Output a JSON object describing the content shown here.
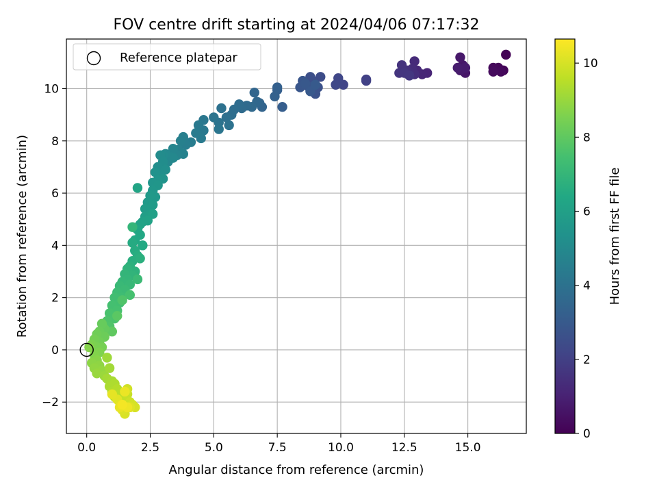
{
  "chart_data": {
    "type": "scatter",
    "title": "FOV centre drift starting at 2024/04/06 07:17:32",
    "xlabel": "Angular distance from reference (arcmin)",
    "ylabel": "Rotation from reference (arcmin)",
    "xlim": [
      -0.8,
      17.3
    ],
    "ylim": [
      -3.2,
      11.9
    ],
    "x_ticks": [
      0,
      2.5,
      5,
      7.5,
      10,
      12.5,
      15
    ],
    "x_tick_labels": [
      "0.0",
      "2.5",
      "5.0",
      "7.5",
      "10.0",
      "12.5",
      "15.0"
    ],
    "y_ticks": [
      -2,
      0,
      2,
      4,
      6,
      8,
      10
    ],
    "y_tick_labels": [
      "−2",
      "0",
      "2",
      "4",
      "6",
      "8",
      "10"
    ],
    "grid": true,
    "colormap": "viridis",
    "colorbar": {
      "label": "Hours from first FF file",
      "range": [
        0,
        10.65
      ],
      "ticks": [
        0,
        2,
        4,
        6,
        8,
        10
      ],
      "tick_labels": [
        "0",
        "2",
        "4",
        "6",
        "8",
        "10"
      ]
    },
    "legend": {
      "placement": "top-left",
      "entries": [
        {
          "label": "Reference platepar",
          "marker": "open-circle"
        }
      ]
    },
    "reference_point": {
      "x": 0.0,
      "y": 0.0
    },
    "points": [
      [
        16.5,
        11.3,
        0.05
      ],
      [
        16.4,
        10.7,
        0.1
      ],
      [
        16.2,
        10.8,
        0.15
      ],
      [
        16.0,
        10.8,
        0.2
      ],
      [
        16.3,
        10.65,
        0.25
      ],
      [
        16.0,
        10.65,
        0.3
      ],
      [
        14.9,
        10.6,
        0.6
      ],
      [
        14.8,
        10.9,
        0.65
      ],
      [
        14.7,
        11.2,
        0.7
      ],
      [
        14.7,
        10.7,
        0.75
      ],
      [
        14.9,
        10.8,
        0.8
      ],
      [
        14.6,
        10.8,
        0.85
      ],
      [
        13.4,
        10.6,
        1.1
      ],
      [
        13.2,
        10.55,
        1.15
      ],
      [
        13.0,
        10.7,
        1.2
      ],
      [
        12.9,
        11.05,
        1.3
      ],
      [
        12.8,
        10.75,
        1.35
      ],
      [
        12.9,
        10.55,
        1.4
      ],
      [
        12.7,
        10.6,
        1.45
      ],
      [
        12.6,
        10.7,
        1.5
      ],
      [
        12.4,
        10.9,
        1.55
      ],
      [
        12.3,
        10.6,
        1.6
      ],
      [
        12.5,
        10.6,
        1.65
      ],
      [
        12.7,
        10.5,
        1.7
      ],
      [
        11.0,
        10.35,
        2.0
      ],
      [
        11.0,
        10.3,
        2.05
      ],
      [
        10.1,
        10.15,
        2.15
      ],
      [
        9.9,
        10.25,
        2.2
      ],
      [
        9.9,
        10.4,
        2.25
      ],
      [
        9.8,
        10.15,
        2.3
      ],
      [
        9.2,
        10.45,
        2.45
      ],
      [
        8.9,
        10.3,
        2.5
      ],
      [
        8.8,
        10.45,
        2.55
      ],
      [
        8.9,
        10.0,
        2.6
      ],
      [
        9.1,
        10.05,
        2.65
      ],
      [
        9.0,
        9.8,
        2.7
      ],
      [
        8.7,
        10.1,
        2.75
      ],
      [
        8.5,
        10.3,
        2.8
      ],
      [
        8.4,
        10.05,
        2.85
      ],
      [
        8.6,
        10.2,
        2.9
      ],
      [
        8.8,
        9.9,
        2.95
      ],
      [
        9.0,
        10.15,
        3.0
      ],
      [
        7.7,
        9.3,
        3.15
      ],
      [
        7.5,
        9.95,
        3.2
      ],
      [
        7.5,
        10.05,
        3.25
      ],
      [
        7.4,
        9.7,
        3.3
      ],
      [
        6.9,
        9.3,
        3.4
      ],
      [
        6.8,
        9.45,
        3.45
      ],
      [
        6.6,
        9.85,
        3.5
      ],
      [
        6.7,
        9.5,
        3.55
      ],
      [
        6.5,
        9.3,
        3.6
      ],
      [
        6.3,
        9.35,
        3.65
      ],
      [
        6.1,
        9.25,
        3.7
      ],
      [
        6.0,
        9.4,
        3.75
      ],
      [
        5.8,
        9.2,
        3.8
      ],
      [
        5.7,
        9.0,
        3.85
      ],
      [
        5.5,
        8.9,
        3.9
      ],
      [
        5.3,
        9.25,
        3.95
      ],
      [
        5.6,
        8.6,
        4.0
      ],
      [
        5.2,
        8.7,
        4.05
      ],
      [
        5.0,
        8.9,
        4.1
      ],
      [
        5.2,
        8.45,
        4.15
      ],
      [
        4.6,
        8.8,
        4.2
      ],
      [
        4.6,
        8.4,
        4.25
      ],
      [
        4.4,
        8.6,
        4.3
      ],
      [
        4.5,
        8.1,
        4.35
      ],
      [
        4.3,
        8.3,
        4.4
      ],
      [
        4.1,
        7.95,
        4.45
      ],
      [
        3.9,
        7.85,
        4.5
      ],
      [
        3.8,
        8.15,
        4.55
      ],
      [
        3.7,
        8.0,
        4.6
      ],
      [
        3.6,
        7.65,
        4.65
      ],
      [
        3.8,
        7.5,
        4.7
      ],
      [
        3.55,
        7.45,
        4.75
      ],
      [
        3.4,
        7.7,
        4.8
      ],
      [
        3.3,
        7.4,
        4.85
      ],
      [
        3.2,
        7.2,
        4.9
      ],
      [
        3.4,
        7.35,
        4.95
      ],
      [
        3.1,
        7.5,
        5.0
      ],
      [
        3.0,
        7.45,
        5.05
      ],
      [
        2.9,
        7.45,
        5.1
      ],
      [
        3.0,
        7.2,
        5.15
      ],
      [
        2.8,
        7.0,
        5.2
      ],
      [
        3.1,
        6.9,
        5.25
      ],
      [
        2.9,
        6.7,
        5.3
      ],
      [
        2.7,
        6.8,
        5.35
      ],
      [
        3.0,
        6.55,
        5.4
      ],
      [
        2.8,
        6.5,
        5.45
      ],
      [
        2.6,
        6.4,
        5.5
      ],
      [
        2.8,
        6.3,
        5.55
      ],
      [
        2.6,
        6.1,
        5.6
      ],
      [
        2.7,
        5.85,
        5.65
      ],
      [
        2.5,
        5.9,
        5.7
      ],
      [
        2.4,
        5.65,
        5.75
      ],
      [
        2.6,
        5.55,
        5.8
      ],
      [
        2.3,
        5.4,
        5.85
      ],
      [
        2.5,
        5.2,
        5.9
      ],
      [
        2.3,
        5.1,
        5.95
      ],
      [
        2.6,
        5.2,
        6.0
      ],
      [
        2.2,
        4.9,
        6.05
      ],
      [
        2.4,
        4.95,
        6.1
      ],
      [
        2.1,
        4.8,
        6.15
      ],
      [
        2.0,
        6.2,
        6.2
      ],
      [
        2.0,
        4.6,
        6.3
      ],
      [
        2.1,
        4.4,
        6.35
      ],
      [
        1.9,
        4.2,
        6.4
      ],
      [
        2.2,
        4.0,
        6.45
      ],
      [
        1.8,
        4.1,
        6.5
      ],
      [
        1.9,
        3.8,
        6.55
      ],
      [
        2.0,
        3.6,
        6.6
      ],
      [
        1.8,
        3.4,
        6.65
      ],
      [
        2.1,
        3.5,
        6.7
      ],
      [
        1.7,
        3.2,
        6.75
      ],
      [
        1.9,
        3.0,
        6.8
      ],
      [
        1.6,
        3.1,
        6.85
      ],
      [
        1.8,
        2.85,
        6.9
      ],
      [
        1.5,
        2.9,
        6.95
      ],
      [
        1.6,
        2.7,
        7.0
      ],
      [
        1.4,
        2.6,
        7.05
      ],
      [
        1.7,
        2.5,
        7.1
      ],
      [
        1.3,
        2.45,
        7.15
      ],
      [
        1.5,
        2.3,
        7.2
      ],
      [
        1.2,
        2.2,
        7.25
      ],
      [
        1.4,
        2.0,
        7.3
      ],
      [
        1.1,
        2.0,
        7.35
      ],
      [
        1.3,
        1.8,
        7.4
      ],
      [
        1.0,
        1.7,
        7.45
      ],
      [
        1.2,
        1.5,
        7.5
      ],
      [
        0.9,
        1.4,
        7.55
      ],
      [
        1.1,
        1.2,
        7.6
      ],
      [
        0.8,
        1.1,
        7.65
      ],
      [
        0.9,
        0.9,
        7.7
      ],
      [
        1.8,
        4.7,
        7.0
      ],
      [
        2.0,
        2.7,
        7.2
      ],
      [
        1.7,
        2.1,
        7.5
      ],
      [
        1.4,
        1.9,
        7.7
      ],
      [
        1.2,
        1.3,
        7.9
      ],
      [
        1.0,
        0.7,
        8.0
      ],
      [
        0.7,
        0.8,
        8.1
      ],
      [
        0.6,
        1.0,
        8.15
      ],
      [
        0.5,
        0.7,
        8.2
      ],
      [
        0.7,
        0.5,
        8.25
      ],
      [
        0.4,
        0.6,
        8.3
      ],
      [
        0.5,
        0.3,
        8.35
      ],
      [
        0.3,
        0.4,
        8.4
      ],
      [
        0.6,
        0.1,
        8.45
      ],
      [
        0.4,
        0.1,
        8.5
      ],
      [
        0.2,
        0.2,
        8.55
      ],
      [
        0.5,
        -0.1,
        8.6
      ],
      [
        0.3,
        -0.2,
        8.65
      ],
      [
        0.1,
        0.1,
        8.7
      ],
      [
        0.4,
        -0.4,
        8.75
      ],
      [
        0.2,
        -0.5,
        8.8
      ],
      [
        0.5,
        -0.6,
        8.85
      ],
      [
        0.3,
        -0.7,
        8.9
      ],
      [
        0.6,
        -0.8,
        8.95
      ],
      [
        0.4,
        -0.9,
        9.0
      ],
      [
        0.7,
        -1.0,
        9.05
      ],
      [
        0.8,
        -0.3,
        9.1
      ],
      [
        0.9,
        -0.7,
        9.15
      ],
      [
        0.8,
        -1.1,
        9.2
      ],
      [
        1.0,
        -1.2,
        9.25
      ],
      [
        0.9,
        -1.4,
        9.3
      ],
      [
        1.1,
        -1.3,
        9.35
      ],
      [
        1.0,
        -1.6,
        9.4
      ],
      [
        1.2,
        -1.5,
        9.45
      ],
      [
        1.3,
        -1.7,
        9.5
      ],
      [
        1.1,
        -1.8,
        9.55
      ],
      [
        1.4,
        -1.9,
        9.6
      ],
      [
        1.3,
        -2.0,
        9.65
      ],
      [
        1.5,
        -1.8,
        9.7
      ],
      [
        1.6,
        -1.7,
        9.75
      ],
      [
        1.5,
        -2.1,
        9.8
      ],
      [
        1.7,
        -2.0,
        9.85
      ],
      [
        1.6,
        -1.5,
        9.9
      ],
      [
        1.8,
        -2.1,
        9.95
      ],
      [
        1.9,
        -2.2,
        10.0
      ],
      [
        1.5,
        -2.45,
        10.05
      ],
      [
        1.4,
        -2.3,
        10.1
      ],
      [
        1.7,
        -2.2,
        10.15
      ],
      [
        1.2,
        -1.9,
        10.2
      ],
      [
        1.0,
        -1.7,
        10.25
      ],
      [
        1.3,
        -2.2,
        10.3
      ],
      [
        1.5,
        -1.6,
        10.35
      ],
      [
        1.6,
        -2.2,
        10.4
      ],
      [
        1.4,
        -2.1,
        10.5
      ]
    ]
  }
}
